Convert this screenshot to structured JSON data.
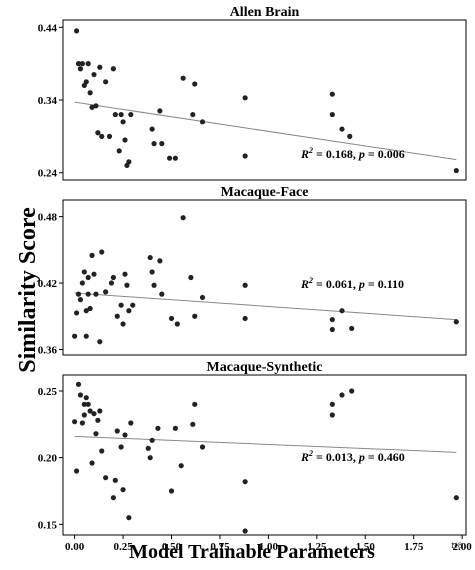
{
  "chart_data": [
    {
      "type": "scatter",
      "title": "Allen Brain",
      "ylim": [
        0.23,
        0.45
      ],
      "yticks": [
        "0.24",
        "0.34",
        "0.44"
      ],
      "xlim": [
        -0.06,
        2.02
      ],
      "annotation": {
        "r2_label": "R",
        "r2_value": "= 0.168,",
        "p_label": "p",
        "p_value": "= 0.006"
      },
      "fit": {
        "x": [
          0.0,
          1.97
        ],
        "y": [
          0.337,
          0.258
        ]
      },
      "points": [
        {
          "x": 0.01,
          "y": 0.435
        },
        {
          "x": 0.02,
          "y": 0.39
        },
        {
          "x": 0.03,
          "y": 0.383
        },
        {
          "x": 0.04,
          "y": 0.39
        },
        {
          "x": 0.05,
          "y": 0.36
        },
        {
          "x": 0.06,
          "y": 0.365
        },
        {
          "x": 0.07,
          "y": 0.39
        },
        {
          "x": 0.08,
          "y": 0.35
        },
        {
          "x": 0.09,
          "y": 0.33
        },
        {
          "x": 0.1,
          "y": 0.375
        },
        {
          "x": 0.11,
          "y": 0.332
        },
        {
          "x": 0.12,
          "y": 0.295
        },
        {
          "x": 0.13,
          "y": 0.385
        },
        {
          "x": 0.14,
          "y": 0.29
        },
        {
          "x": 0.16,
          "y": 0.365
        },
        {
          "x": 0.18,
          "y": 0.29
        },
        {
          "x": 0.2,
          "y": 0.383
        },
        {
          "x": 0.21,
          "y": 0.32
        },
        {
          "x": 0.24,
          "y": 0.32
        },
        {
          "x": 0.25,
          "y": 0.31
        },
        {
          "x": 0.26,
          "y": 0.285
        },
        {
          "x": 0.27,
          "y": 0.25
        },
        {
          "x": 0.28,
          "y": 0.255
        },
        {
          "x": 0.29,
          "y": 0.32
        },
        {
          "x": 0.23,
          "y": 0.27
        },
        {
          "x": 0.4,
          "y": 0.3
        },
        {
          "x": 0.41,
          "y": 0.28
        },
        {
          "x": 0.44,
          "y": 0.325
        },
        {
          "x": 0.45,
          "y": 0.28
        },
        {
          "x": 0.49,
          "y": 0.26
        },
        {
          "x": 0.52,
          "y": 0.26
        },
        {
          "x": 0.56,
          "y": 0.37
        },
        {
          "x": 0.61,
          "y": 0.32
        },
        {
          "x": 0.62,
          "y": 0.362
        },
        {
          "x": 0.66,
          "y": 0.31
        },
        {
          "x": 0.88,
          "y": 0.343
        },
        {
          "x": 0.88,
          "y": 0.263
        },
        {
          "x": 1.33,
          "y": 0.348
        },
        {
          "x": 1.33,
          "y": 0.32
        },
        {
          "x": 1.38,
          "y": 0.3
        },
        {
          "x": 1.42,
          "y": 0.29
        },
        {
          "x": 1.97,
          "y": 0.243
        }
      ]
    },
    {
      "type": "scatter",
      "title": "Macaque-Face",
      "ylim": [
        0.355,
        0.495
      ],
      "yticks": [
        "0.36",
        "0.42",
        "0.48"
      ],
      "xlim": [
        -0.06,
        2.02
      ],
      "annotation": {
        "r2_label": "R",
        "r2_value": "= 0.061,",
        "p_label": "p",
        "p_value": "= 0.110"
      },
      "fit": {
        "x": [
          0.0,
          1.97
        ],
        "y": [
          0.411,
          0.387
        ]
      },
      "points": [
        {
          "x": 0.0,
          "y": 0.372
        },
        {
          "x": 0.01,
          "y": 0.393
        },
        {
          "x": 0.02,
          "y": 0.41
        },
        {
          "x": 0.03,
          "y": 0.405
        },
        {
          "x": 0.04,
          "y": 0.42
        },
        {
          "x": 0.05,
          "y": 0.43
        },
        {
          "x": 0.06,
          "y": 0.372
        },
        {
          "x": 0.06,
          "y": 0.395
        },
        {
          "x": 0.07,
          "y": 0.41
        },
        {
          "x": 0.07,
          "y": 0.425
        },
        {
          "x": 0.08,
          "y": 0.397
        },
        {
          "x": 0.09,
          "y": 0.445
        },
        {
          "x": 0.1,
          "y": 0.428
        },
        {
          "x": 0.11,
          "y": 0.41
        },
        {
          "x": 0.13,
          "y": 0.367
        },
        {
          "x": 0.14,
          "y": 0.448
        },
        {
          "x": 0.16,
          "y": 0.412
        },
        {
          "x": 0.19,
          "y": 0.42
        },
        {
          "x": 0.2,
          "y": 0.425
        },
        {
          "x": 0.22,
          "y": 0.39
        },
        {
          "x": 0.24,
          "y": 0.4
        },
        {
          "x": 0.25,
          "y": 0.383
        },
        {
          "x": 0.26,
          "y": 0.428
        },
        {
          "x": 0.27,
          "y": 0.418
        },
        {
          "x": 0.28,
          "y": 0.395
        },
        {
          "x": 0.3,
          "y": 0.4
        },
        {
          "x": 0.39,
          "y": 0.443
        },
        {
          "x": 0.4,
          "y": 0.43
        },
        {
          "x": 0.41,
          "y": 0.418
        },
        {
          "x": 0.44,
          "y": 0.44
        },
        {
          "x": 0.45,
          "y": 0.41
        },
        {
          "x": 0.5,
          "y": 0.388
        },
        {
          "x": 0.53,
          "y": 0.383
        },
        {
          "x": 0.56,
          "y": 0.479
        },
        {
          "x": 0.6,
          "y": 0.425
        },
        {
          "x": 0.62,
          "y": 0.39
        },
        {
          "x": 0.66,
          "y": 0.407
        },
        {
          "x": 0.88,
          "y": 0.418
        },
        {
          "x": 0.88,
          "y": 0.388
        },
        {
          "x": 1.33,
          "y": 0.387
        },
        {
          "x": 1.33,
          "y": 0.378
        },
        {
          "x": 1.38,
          "y": 0.395
        },
        {
          "x": 1.43,
          "y": 0.379
        },
        {
          "x": 1.97,
          "y": 0.385
        }
      ]
    },
    {
      "type": "scatter",
      "title": "Macaque-Synthetic",
      "ylim": [
        0.142,
        0.262
      ],
      "yticks": [
        "0.15",
        "0.20",
        "0.25"
      ],
      "xticks": [
        "0.00",
        "0.25",
        "0.50",
        "0.75",
        "1.00",
        "1.25",
        "1.50",
        "1.75",
        "2.00"
      ],
      "xlim": [
        -0.06,
        2.02
      ],
      "annotation": {
        "r2_label": "R",
        "r2_value": "= 0.013,",
        "p_label": "p",
        "p_value": "= 0.460"
      },
      "fit": {
        "x": [
          0.0,
          1.97
        ],
        "y": [
          0.216,
          0.204
        ]
      },
      "points": [
        {
          "x": 0.0,
          "y": 0.227
        },
        {
          "x": 0.01,
          "y": 0.19
        },
        {
          "x": 0.02,
          "y": 0.255
        },
        {
          "x": 0.03,
          "y": 0.247
        },
        {
          "x": 0.04,
          "y": 0.226
        },
        {
          "x": 0.05,
          "y": 0.24
        },
        {
          "x": 0.05,
          "y": 0.232
        },
        {
          "x": 0.06,
          "y": 0.245
        },
        {
          "x": 0.07,
          "y": 0.24
        },
        {
          "x": 0.08,
          "y": 0.235
        },
        {
          "x": 0.09,
          "y": 0.196
        },
        {
          "x": 0.1,
          "y": 0.233
        },
        {
          "x": 0.11,
          "y": 0.218
        },
        {
          "x": 0.12,
          "y": 0.228
        },
        {
          "x": 0.13,
          "y": 0.235
        },
        {
          "x": 0.14,
          "y": 0.205
        },
        {
          "x": 0.16,
          "y": 0.185
        },
        {
          "x": 0.2,
          "y": 0.17
        },
        {
          "x": 0.21,
          "y": 0.183
        },
        {
          "x": 0.22,
          "y": 0.22
        },
        {
          "x": 0.24,
          "y": 0.208
        },
        {
          "x": 0.25,
          "y": 0.176
        },
        {
          "x": 0.26,
          "y": 0.217
        },
        {
          "x": 0.28,
          "y": 0.155
        },
        {
          "x": 0.29,
          "y": 0.226
        },
        {
          "x": 0.38,
          "y": 0.207
        },
        {
          "x": 0.39,
          "y": 0.2
        },
        {
          "x": 0.4,
          "y": 0.213
        },
        {
          "x": 0.43,
          "y": 0.222
        },
        {
          "x": 0.5,
          "y": 0.175
        },
        {
          "x": 0.52,
          "y": 0.222
        },
        {
          "x": 0.55,
          "y": 0.194
        },
        {
          "x": 0.61,
          "y": 0.225
        },
        {
          "x": 0.62,
          "y": 0.24
        },
        {
          "x": 0.66,
          "y": 0.208
        },
        {
          "x": 0.88,
          "y": 0.182
        },
        {
          "x": 0.88,
          "y": 0.145
        },
        {
          "x": 1.33,
          "y": 0.24
        },
        {
          "x": 1.33,
          "y": 0.232
        },
        {
          "x": 1.38,
          "y": 0.247
        },
        {
          "x": 1.43,
          "y": 0.25
        },
        {
          "x": 1.97,
          "y": 0.17
        }
      ]
    }
  ],
  "axes": {
    "xlabel": "Model Trainable Parameters",
    "ylabel": "Similarity Score",
    "x_scale_note": "1e8"
  }
}
